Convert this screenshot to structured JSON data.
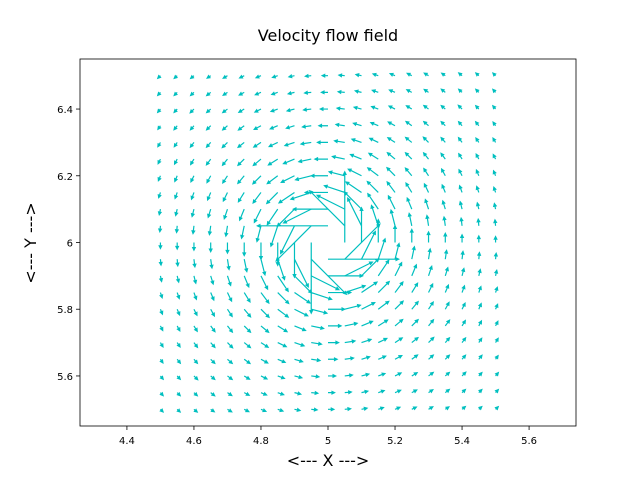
{
  "chart_data": {
    "type": "quiver",
    "title": "Velocity flow field",
    "x_label": "<--- X --->",
    "y_label": "<--- Y --->",
    "color": "#00bfbf",
    "xlim": [
      4.26,
      5.74
    ],
    "ylim": [
      5.45,
      6.55
    ],
    "xticks": [
      4.4,
      4.6,
      4.8,
      5.0,
      5.2,
      5.4,
      5.6
    ],
    "yticks": [
      5.6,
      5.8,
      6.0,
      6.2,
      6.4
    ],
    "x": [
      4.5,
      4.55,
      4.6,
      4.65,
      4.7,
      4.75,
      4.8,
      4.85,
      4.9,
      4.95,
      5.0,
      5.05,
      5.1,
      5.15,
      5.2,
      5.25,
      5.3,
      5.35,
      5.4,
      5.45,
      5.5
    ],
    "y": [
      5.5,
      5.55,
      5.6,
      5.65,
      5.7,
      5.75,
      5.8,
      5.85,
      5.9,
      5.95,
      6.0,
      6.05,
      6.1,
      6.15,
      6.2,
      6.25,
      6.3,
      6.35,
      6.4,
      6.45,
      6.5
    ],
    "u": [
      [
        1,
        1.1,
        1.2,
        1.3,
        1.5,
        1.6,
        1.7,
        1.8,
        1.9,
        2,
        2,
        2,
        1.9,
        1.8,
        1.7,
        1.6,
        1.5,
        1.3,
        1.2,
        1.1,
        1
      ],
      [
        1,
        1.1,
        1.2,
        1.4,
        1.5,
        1.7,
        1.9,
        2,
        2.1,
        2.2,
        2.2,
        2.2,
        2.1,
        2,
        1.9,
        1.7,
        1.5,
        1.4,
        1.2,
        1.1,
        1
      ],
      [
        1,
        1.1,
        1.3,
        1.4,
        1.6,
        1.8,
        2,
        2.2,
        2.4,
        2.5,
        2.5,
        2.5,
        2.4,
        2.2,
        2,
        1.8,
        1.6,
        1.4,
        1.3,
        1.1,
        1
      ],
      [
        0.9,
        1.1,
        1.2,
        1.4,
        1.6,
        1.9,
        2.2,
        2.4,
        2.6,
        2.8,
        2.9,
        2.8,
        2.6,
        2.4,
        2.2,
        1.9,
        1.6,
        1.4,
        1.2,
        1.1,
        0.9
      ],
      [
        0.9,
        1,
        1.2,
        1.4,
        1.7,
        2,
        2.3,
        2.7,
        3,
        3.2,
        3.3,
        3.2,
        3,
        2.7,
        2.3,
        2,
        1.7,
        1.4,
        1.2,
        1,
        0.9
      ],
      [
        0.8,
        0.9,
        1.1,
        1.4,
        1.6,
        2,
        2.4,
        2.9,
        3.4,
        3.8,
        4,
        3.8,
        3.4,
        2.9,
        2.4,
        2,
        1.6,
        1.4,
        1.1,
        0.9,
        0.8
      ],
      [
        0.7,
        0.8,
        1,
        1.2,
        1.5,
        2,
        2.5,
        3.2,
        4,
        4.7,
        5,
        4.7,
        4,
        3.2,
        2.5,
        2,
        1.5,
        1.2,
        1,
        0.8,
        0.7
      ],
      [
        0.6,
        0.7,
        0.8,
        1,
        1.3,
        1.8,
        2.4,
        3.3,
        4.6,
        6,
        6.7,
        6,
        4.6,
        3.3,
        2.4,
        1.8,
        1.3,
        1,
        0.8,
        0.7,
        0.6
      ],
      [
        0.4,
        0.5,
        0.6,
        0.8,
        1,
        1.4,
        2,
        3.1,
        5,
        8,
        10,
        8,
        5,
        3.1,
        2,
        1.4,
        1,
        0.8,
        0.6,
        0.5,
        0.4
      ],
      [
        0.2,
        0.2,
        0.3,
        0.4,
        0.5,
        0.8,
        1.2,
        2,
        4,
        10,
        20,
        10,
        4,
        2,
        1.2,
        0.8,
        0.5,
        0.4,
        0.3,
        0.2,
        0.2
      ],
      [
        0,
        0,
        0,
        0,
        0,
        0,
        0,
        0,
        0,
        0,
        null,
        0,
        0,
        0,
        0,
        0,
        0,
        0,
        0,
        0,
        0
      ],
      [
        -0.2,
        -0.2,
        -0.3,
        -0.4,
        -0.5,
        -0.8,
        -1.2,
        -2,
        -4,
        -10,
        -20,
        -10,
        -4,
        -2,
        -1.2,
        -0.8,
        -0.5,
        -0.4,
        -0.3,
        -0.2,
        -0.2
      ],
      [
        -0.4,
        -0.5,
        -0.6,
        -0.8,
        -1,
        -1.4,
        -2,
        -3.1,
        -5,
        -8,
        -10,
        -8,
        -5,
        -3.1,
        -2,
        -1.4,
        -1,
        -0.8,
        -0.6,
        -0.5,
        -0.4
      ],
      [
        -0.6,
        -0.7,
        -0.8,
        -1,
        -1.3,
        -1.8,
        -2.4,
        -3.3,
        -4.6,
        -6,
        -6.7,
        -6,
        -4.6,
        -3.3,
        -2.4,
        -1.8,
        -1.3,
        -1,
        -0.8,
        -0.7,
        -0.6
      ],
      [
        -0.7,
        -0.8,
        -1,
        -1.2,
        -1.5,
        -2,
        -2.5,
        -3.2,
        -4,
        -4.7,
        -5,
        -4.7,
        -4,
        -3.2,
        -2.5,
        -2,
        -1.5,
        -1.2,
        -1,
        -0.8,
        -0.7
      ],
      [
        -0.8,
        -0.9,
        -1.1,
        -1.4,
        -1.6,
        -2,
        -2.4,
        -2.9,
        -3.4,
        -3.8,
        -4,
        -3.8,
        -3.4,
        -2.9,
        -2.4,
        -2,
        -1.6,
        -1.4,
        -1.1,
        -0.9,
        -0.8
      ],
      [
        -0.9,
        -1,
        -1.2,
        -1.4,
        -1.7,
        -2,
        -2.3,
        -2.7,
        -3,
        -3.2,
        -3.3,
        -3.2,
        -3,
        -2.7,
        -2.3,
        -2,
        -1.7,
        -1.4,
        -1.2,
        -1,
        -0.9
      ],
      [
        -0.9,
        -1.1,
        -1.2,
        -1.4,
        -1.6,
        -1.9,
        -2.2,
        -2.4,
        -2.6,
        -2.8,
        -2.9,
        -2.8,
        -2.6,
        -2.4,
        -2.2,
        -1.9,
        -1.6,
        -1.4,
        -1.2,
        -1.1,
        -0.9
      ],
      [
        -1,
        -1.1,
        -1.3,
        -1.4,
        -1.6,
        -1.8,
        -2,
        -2.2,
        -2.4,
        -2.5,
        -2.5,
        -2.5,
        -2.4,
        -2.2,
        -2,
        -1.8,
        -1.6,
        -1.4,
        -1.3,
        -1.1,
        -1
      ],
      [
        -1,
        -1.1,
        -1.2,
        -1.4,
        -1.5,
        -1.7,
        -1.9,
        -2,
        -2.1,
        -2.2,
        -2.2,
        -2.2,
        -2.1,
        -2,
        -1.9,
        -1.7,
        -1.5,
        -1.4,
        -1.2,
        -1.1,
        -1
      ],
      [
        -1,
        -1.1,
        -1.2,
        -1.3,
        -1.5,
        -1.6,
        -1.7,
        -1.8,
        -1.9,
        -2,
        -2,
        -2,
        -1.9,
        -1.8,
        -1.7,
        -1.6,
        -1.5,
        -1.3,
        -1.2,
        -1.1,
        -1
      ]
    ],
    "v": [
      [
        -1,
        -1,
        -1,
        -0.9,
        -0.9,
        -0.8,
        -0.7,
        -0.6,
        -0.4,
        -0.2,
        0,
        0.2,
        0.4,
        0.6,
        0.7,
        0.8,
        0.9,
        0.9,
        1,
        1,
        1
      ],
      [
        -1.1,
        -1.1,
        -1.1,
        -1.1,
        -1,
        -0.9,
        -0.8,
        -0.7,
        -0.5,
        -0.2,
        0,
        0.2,
        0.5,
        0.7,
        0.8,
        0.9,
        1,
        1.1,
        1.1,
        1.1,
        1.1
      ],
      [
        -1.2,
        -1.2,
        -1.3,
        -1.2,
        -1.2,
        -1.1,
        -1,
        -0.8,
        -0.6,
        -0.3,
        0,
        0.3,
        0.6,
        0.8,
        1,
        1.1,
        1.2,
        1.2,
        1.3,
        1.2,
        1.2
      ],
      [
        -1.3,
        -1.4,
        -1.4,
        -1.4,
        -1.4,
        -1.4,
        -1.2,
        -1,
        -0.8,
        -0.4,
        0,
        0.4,
        0.8,
        1,
        1.2,
        1.4,
        1.4,
        1.4,
        1.4,
        1.4,
        1.3
      ],
      [
        -1.5,
        -1.5,
        -1.6,
        -1.6,
        -1.7,
        -1.6,
        -1.5,
        -1.3,
        -1,
        -0.5,
        0,
        0.5,
        1,
        1.3,
        1.5,
        1.6,
        1.7,
        1.6,
        1.6,
        1.5,
        1.5
      ],
      [
        -1.6,
        -1.7,
        -1.8,
        -1.9,
        -2,
        -2,
        -2,
        -1.8,
        -1.4,
        -0.8,
        0,
        0.8,
        1.4,
        1.8,
        2,
        2,
        2,
        1.9,
        1.8,
        1.7,
        1.6
      ],
      [
        -1.7,
        -1.9,
        -2,
        -2.2,
        -2.3,
        -2.4,
        -2.5,
        -2.4,
        -2,
        -1.2,
        0,
        1.2,
        2,
        2.4,
        2.5,
        2.4,
        2.3,
        2.2,
        2,
        1.9,
        1.7
      ],
      [
        -1.8,
        -2,
        -2.2,
        -2.4,
        -2.7,
        -2.9,
        -3.2,
        -3.3,
        -3.1,
        -2,
        0,
        2,
        3.1,
        3.3,
        3.2,
        2.9,
        2.7,
        2.4,
        2.2,
        2,
        1.8
      ],
      [
        -1.9,
        -2.1,
        -2.4,
        -2.6,
        -3,
        -3.4,
        -4,
        -4.6,
        -5,
        -4,
        0,
        4,
        5,
        4.6,
        4,
        3.4,
        3,
        2.6,
        2.4,
        2.1,
        1.9
      ],
      [
        -2,
        -2.2,
        -2.5,
        -2.8,
        -3.2,
        -3.8,
        -4.7,
        -6,
        -8,
        -10,
        0,
        10,
        8,
        6,
        4.7,
        3.8,
        3.2,
        2.8,
        2.5,
        2.2,
        2
      ],
      [
        -2,
        -2.2,
        -2.5,
        -2.9,
        -3.3,
        -4,
        -5,
        -6.7,
        -10,
        -20,
        null,
        20,
        10,
        6.7,
        5,
        4,
        3.3,
        2.9,
        2.5,
        2.2,
        2
      ],
      [
        -2,
        -2.2,
        -2.5,
        -2.8,
        -3.2,
        -3.8,
        -4.7,
        -6,
        -8,
        -10,
        0,
        10,
        8,
        6,
        4.7,
        3.8,
        3.2,
        2.8,
        2.5,
        2.2,
        2
      ],
      [
        -1.9,
        -2.1,
        -2.4,
        -2.6,
        -3,
        -3.4,
        -4,
        -4.6,
        -5,
        -4,
        0,
        4,
        5,
        4.6,
        4,
        3.4,
        3,
        2.6,
        2.4,
        2.1,
        1.9
      ],
      [
        -1.8,
        -2,
        -2.2,
        -2.4,
        -2.7,
        -2.9,
        -3.2,
        -3.3,
        -3.1,
        -2,
        0,
        2,
        3.1,
        3.3,
        3.2,
        2.9,
        2.7,
        2.4,
        2.2,
        2,
        1.8
      ],
      [
        -1.7,
        -1.9,
        -2,
        -2.2,
        -2.3,
        -2.4,
        -2.5,
        -2.4,
        -2,
        -1.2,
        0,
        1.2,
        2,
        2.4,
        2.5,
        2.4,
        2.3,
        2.2,
        2,
        1.9,
        1.7
      ],
      [
        -1.6,
        -1.7,
        -1.8,
        -1.9,
        -2,
        -2,
        -2,
        -1.8,
        -1.4,
        -0.8,
        0,
        0.8,
        1.4,
        1.8,
        2,
        2,
        2,
        1.9,
        1.8,
        1.7,
        1.6
      ],
      [
        -1.5,
        -1.5,
        -1.6,
        -1.6,
        -1.7,
        -1.6,
        -1.5,
        -1.3,
        -1,
        -0.5,
        0,
        0.5,
        1,
        1.3,
        1.5,
        1.6,
        1.7,
        1.6,
        1.6,
        1.5,
        1.5
      ],
      [
        -1.3,
        -1.4,
        -1.4,
        -1.4,
        -1.4,
        -1.4,
        -1.2,
        -1,
        -0.8,
        -0.4,
        0,
        0.4,
        0.8,
        1,
        1.2,
        1.4,
        1.4,
        1.4,
        1.4,
        1.4,
        1.3
      ],
      [
        -1.2,
        -1.2,
        -1.3,
        -1.2,
        -1.2,
        -1.1,
        -1,
        -0.8,
        -0.6,
        -0.3,
        0,
        0.3,
        0.6,
        0.8,
        1,
        1.1,
        1.2,
        1.2,
        1.3,
        1.2,
        1.2
      ],
      [
        -1.1,
        -1.1,
        -1.1,
        -1.1,
        -1,
        -0.9,
        -0.8,
        -0.7,
        -0.5,
        -0.2,
        0,
        0.2,
        0.5,
        0.7,
        0.8,
        0.9,
        1,
        1.1,
        1.1,
        1.1,
        1.1
      ],
      [
        -1,
        -1,
        -1,
        -0.9,
        -0.9,
        -0.8,
        -0.7,
        -0.6,
        -0.4,
        -0.2,
        0,
        0.2,
        0.4,
        0.6,
        0.7,
        0.8,
        0.9,
        0.9,
        1,
        1,
        1
      ]
    ]
  }
}
